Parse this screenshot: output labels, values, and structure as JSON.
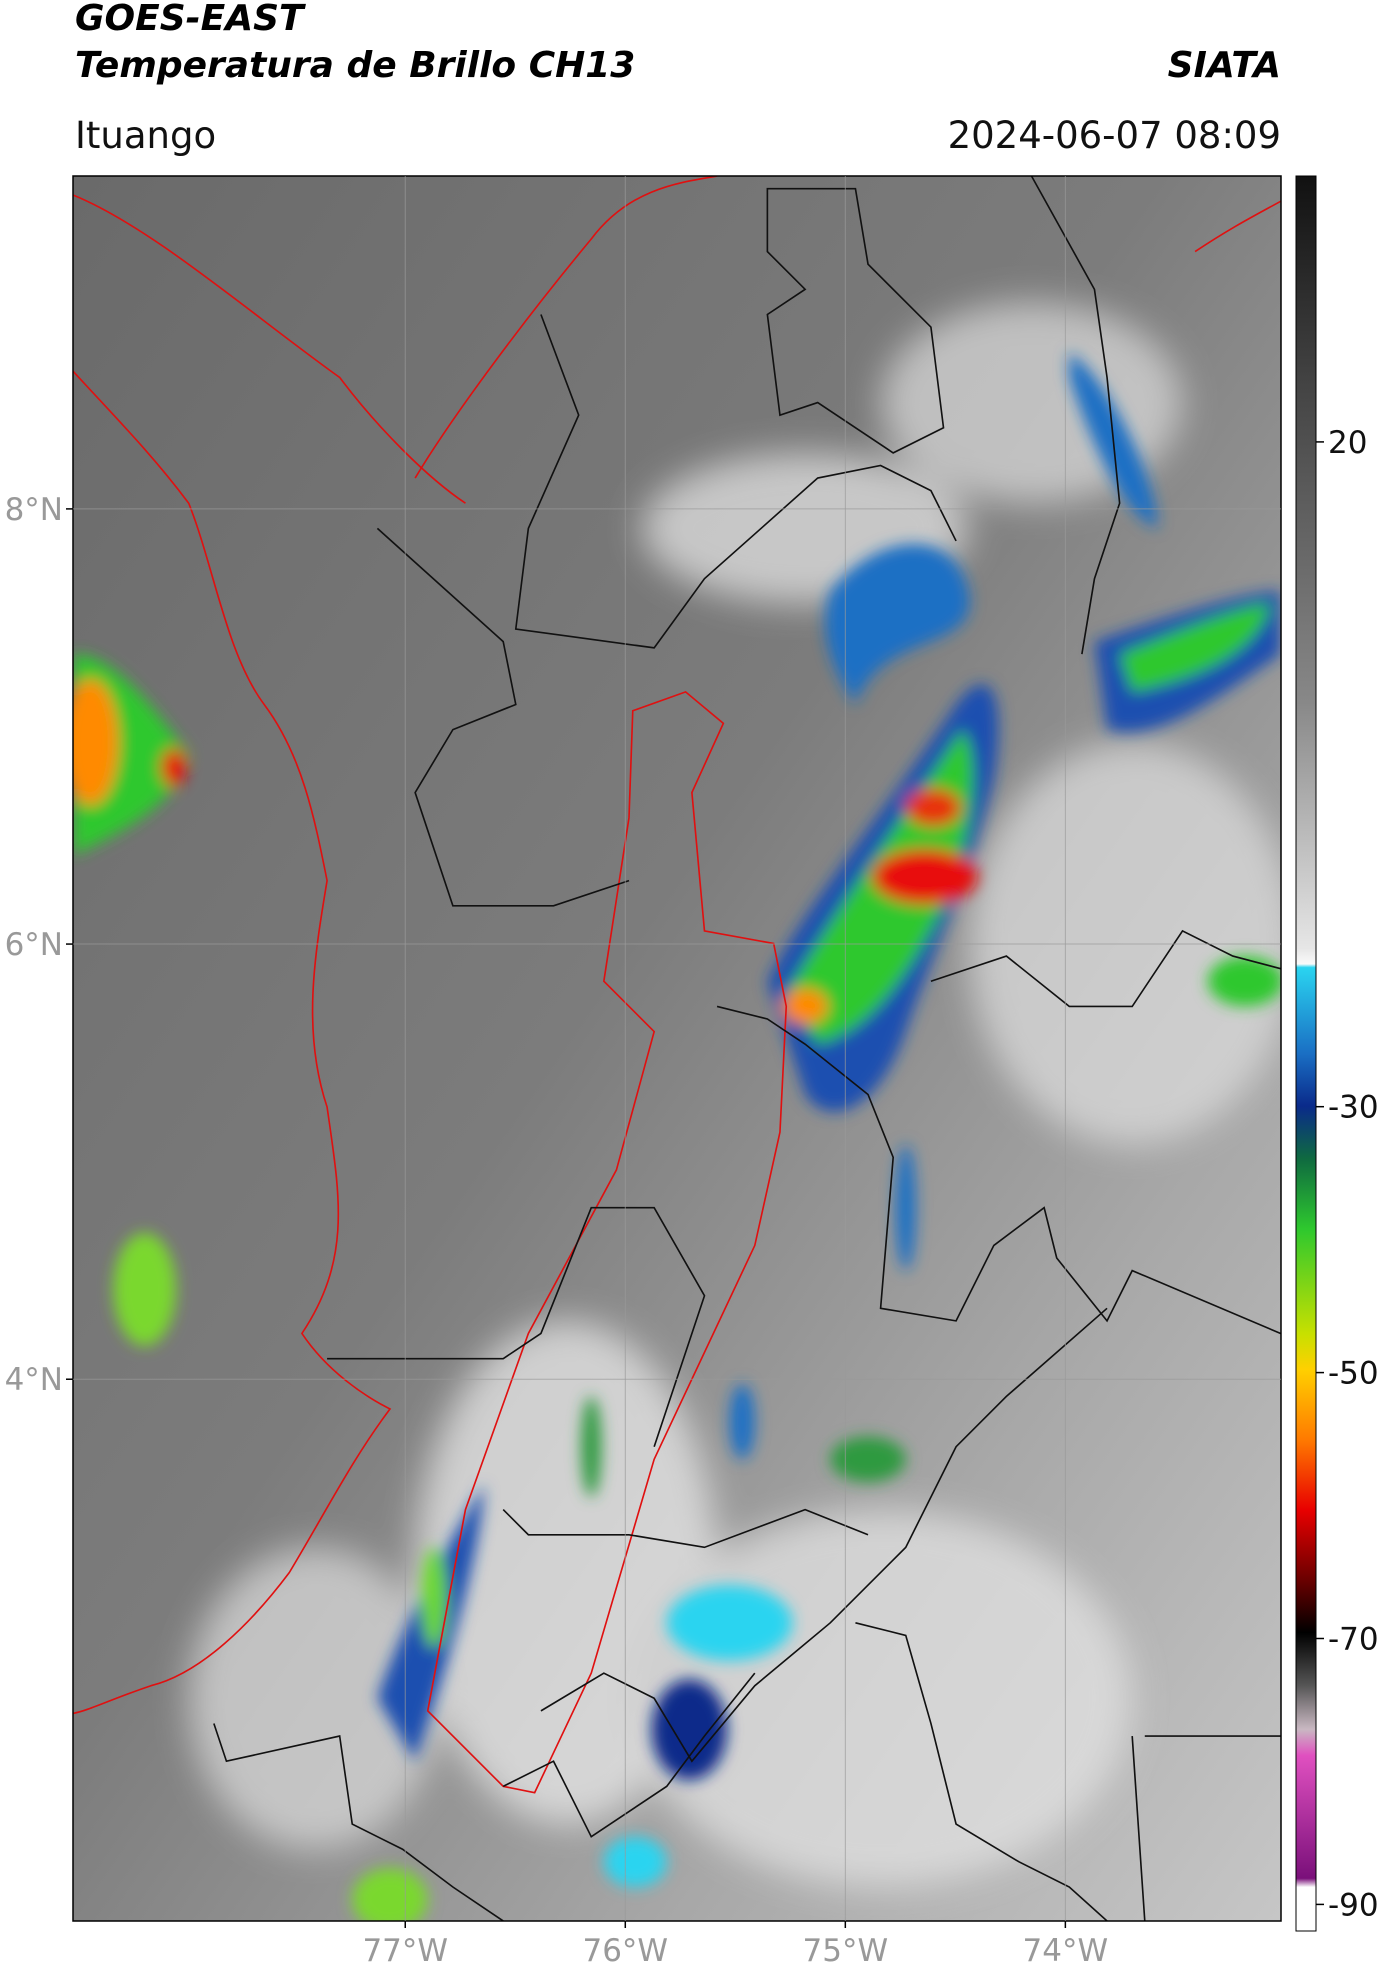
{
  "header": {
    "line1": "GOES-EAST",
    "line2": "Temperatura de Brillo CH13",
    "source": "SIATA",
    "location": "Ituango",
    "datetime": "2024-06-07 08:09"
  },
  "map": {
    "xlim": [
      -78.51,
      -73.02
    ],
    "ylim": [
      1.51,
      9.53
    ],
    "xticks": [
      {
        "value": -77,
        "label": "77°W"
      },
      {
        "value": -76,
        "label": "76°W"
      },
      {
        "value": -75,
        "label": "75°W"
      },
      {
        "value": -74,
        "label": "74°W"
      }
    ],
    "yticks": [
      {
        "value": 8,
        "label": "8°N"
      },
      {
        "value": 6,
        "label": "6°N"
      },
      {
        "value": 4,
        "label": "4°N"
      }
    ],
    "grid": true
  },
  "colorbar": {
    "ylim": [
      -92,
      40
    ],
    "yticks": [
      20,
      -30,
      -50,
      -70,
      -90
    ]
  }
}
